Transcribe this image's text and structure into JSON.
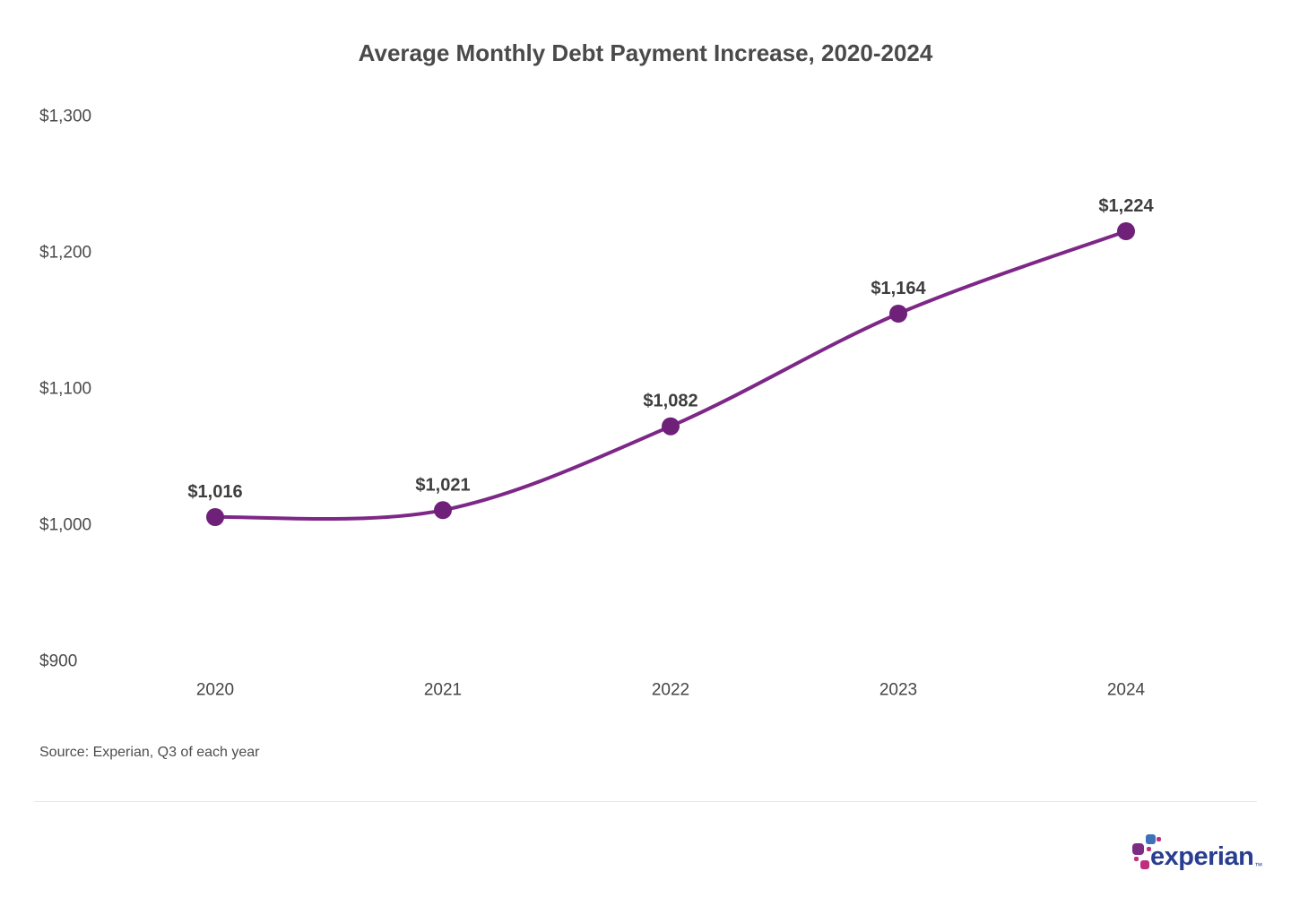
{
  "chart_data": {
    "type": "line",
    "title": "Average Monthly Debt Payment Increase, 2020-2024",
    "categories": [
      "2020",
      "2021",
      "2022",
      "2023",
      "2024"
    ],
    "values": [
      1016,
      1021,
      1082,
      1164,
      1224
    ],
    "point_labels": [
      "$1,016",
      "$1,021",
      "$1,082",
      "$1,164",
      "$1,224"
    ],
    "y_ticks": [
      "$900",
      "$1,000",
      "$1,100",
      "$1,200",
      "$1,300"
    ],
    "y_tick_values": [
      900,
      1000,
      1100,
      1200,
      1300
    ],
    "ylim": [
      900,
      1300
    ],
    "xlabel": "",
    "ylabel": "",
    "grid": false,
    "legend": "none",
    "line_color": "#7d2787",
    "point_color": "#6f2079"
  },
  "source_note": "Source: Experian, Q3 of each year",
  "logo": {
    "wordmark": "experian",
    "trademark": "™",
    "colors": {
      "blue": "#3d72b9",
      "purple": "#7d2c84",
      "magenta": "#be2f7e",
      "navy": "#293e90"
    }
  }
}
